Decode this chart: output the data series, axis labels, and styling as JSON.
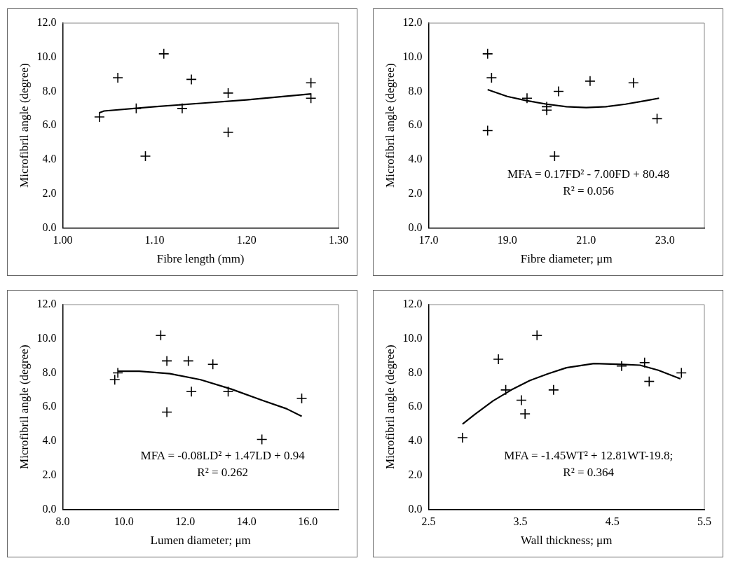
{
  "chart_data": [
    {
      "type": "scatter",
      "xlabel": "Fibre length (mm)",
      "ylabel": "Microfibril angle (degree)",
      "xlim": [
        1.0,
        1.3
      ],
      "xticks": [
        {
          "value": 1.0,
          "label": "1.00"
        },
        {
          "value": 1.1,
          "label": "1.10"
        },
        {
          "value": 1.2,
          "label": "1.20"
        },
        {
          "value": 1.3,
          "label": "1.30"
        }
      ],
      "ylim": [
        0,
        12
      ],
      "yticks": [
        {
          "value": 0,
          "label": "0.0"
        },
        {
          "value": 2,
          "label": "2.0"
        },
        {
          "value": 4,
          "label": "4.0"
        },
        {
          "value": 6,
          "label": "6.0"
        },
        {
          "value": 8,
          "label": "8.0"
        },
        {
          "value": 10,
          "label": "10.0"
        },
        {
          "value": 12,
          "label": "12.0"
        }
      ],
      "grid": false,
      "legend": false,
      "marker": "cross",
      "series": [
        {
          "type": "scatter",
          "color": "#000000",
          "x": [
            1.04,
            1.06,
            1.08,
            1.09,
            1.11,
            1.13,
            1.14,
            1.18,
            1.18,
            1.27,
            1.27
          ],
          "values": [
            6.5,
            8.8,
            7.0,
            4.2,
            10.2,
            7.0,
            8.7,
            5.6,
            7.9,
            8.5,
            7.6
          ]
        },
        {
          "type": "line",
          "color": "#000000",
          "marker": "none",
          "x": [
            1.04,
            1.045,
            1.1,
            1.15,
            1.2,
            1.27
          ],
          "values": [
            6.75,
            6.85,
            7.1,
            7.3,
            7.5,
            7.85
          ]
        }
      ]
    },
    {
      "type": "scatter",
      "xlabel": "Fibre diameter; μm",
      "ylabel": "Microfibril angle (degree)",
      "annotations": [
        "MFA = 0.17FD² - 7.00FD + 80.48",
        "R² = 0.056"
      ],
      "xlim": [
        17,
        24
      ],
      "xticks": [
        {
          "value": 17,
          "label": "17.0"
        },
        {
          "value": 19,
          "label": "19.0"
        },
        {
          "value": 21,
          "label": "21.0"
        },
        {
          "value": 23,
          "label": "23.0"
        }
      ],
      "ylim": [
        0,
        12
      ],
      "yticks": [
        {
          "value": 0,
          "label": "0.0"
        },
        {
          "value": 2,
          "label": "2.0"
        },
        {
          "value": 4,
          "label": "4.0"
        },
        {
          "value": 6,
          "label": "6.0"
        },
        {
          "value": 8,
          "label": "8.0"
        },
        {
          "value": 10,
          "label": "10.0"
        },
        {
          "value": 12,
          "label": "12.0"
        }
      ],
      "grid": false,
      "legend": false,
      "marker": "cross",
      "series": [
        {
          "type": "scatter",
          "color": "#000000",
          "x": [
            18.5,
            18.6,
            18.5,
            19.5,
            20.0,
            20.0,
            20.2,
            20.3,
            21.1,
            22.2,
            22.8
          ],
          "values": [
            10.2,
            8.8,
            5.7,
            7.6,
            7.1,
            6.9,
            4.2,
            8.0,
            8.6,
            8.5,
            6.4
          ]
        },
        {
          "type": "line",
          "color": "#000000",
          "marker": "none",
          "x": [
            18.5,
            19.0,
            19.5,
            20.0,
            20.5,
            21.0,
            21.5,
            22.0,
            22.5,
            22.85
          ],
          "values": [
            8.1,
            7.7,
            7.45,
            7.25,
            7.1,
            7.05,
            7.1,
            7.25,
            7.45,
            7.6
          ]
        }
      ]
    },
    {
      "type": "scatter",
      "xlabel": "Lumen diameter; μm",
      "ylabel": "Microfibril angle (degree)",
      "annotations": [
        "MFA = -0.08LD² + 1.47LD + 0.94",
        "R² = 0.262"
      ],
      "xlim": [
        8,
        17
      ],
      "xticks": [
        {
          "value": 8,
          "label": "8.0"
        },
        {
          "value": 10,
          "label": "10.0"
        },
        {
          "value": 12,
          "label": "12.0"
        },
        {
          "value": 14,
          "label": "14.0"
        },
        {
          "value": 16,
          "label": "16.0"
        }
      ],
      "ylim": [
        0,
        12
      ],
      "yticks": [
        {
          "value": 0,
          "label": "0.0"
        },
        {
          "value": 2,
          "label": "2.0"
        },
        {
          "value": 4,
          "label": "4.0"
        },
        {
          "value": 6,
          "label": "6.0"
        },
        {
          "value": 8,
          "label": "8.0"
        },
        {
          "value": 10,
          "label": "10.0"
        },
        {
          "value": 12,
          "label": "12.0"
        }
      ],
      "grid": false,
      "legend": false,
      "marker": "cross",
      "series": [
        {
          "type": "scatter",
          "color": "#000000",
          "x": [
            9.7,
            9.8,
            11.2,
            11.4,
            11.4,
            12.1,
            12.2,
            12.9,
            13.4,
            14.5,
            15.8
          ],
          "values": [
            7.6,
            8.0,
            10.2,
            8.7,
            5.7,
            8.7,
            6.9,
            8.5,
            6.9,
            4.1,
            6.5
          ]
        },
        {
          "type": "line",
          "color": "#000000",
          "marker": "none",
          "x": [
            9.8,
            10.5,
            11.5,
            12.5,
            13.5,
            14.5,
            15.3,
            15.8
          ],
          "values": [
            8.1,
            8.1,
            7.95,
            7.6,
            7.05,
            6.4,
            5.9,
            5.45
          ]
        }
      ]
    },
    {
      "type": "scatter",
      "xlabel": "Wall thickness; μm",
      "ylabel": "Microfibril angle (degree)",
      "annotations": [
        "MFA = -1.45WT² + 12.81WT-19.8;",
        "R² = 0.364"
      ],
      "xlim": [
        2.5,
        5.5
      ],
      "xticks": [
        2.5,
        3.5,
        4.5,
        5.5
      ],
      "ylim": [
        0,
        12
      ],
      "yticks": [
        {
          "value": 0,
          "label": "0.0"
        },
        {
          "value": 2,
          "label": "2.0"
        },
        {
          "value": 4,
          "label": "4.0"
        },
        {
          "value": 6,
          "label": "6.0"
        },
        {
          "value": 8,
          "label": "8.0"
        },
        {
          "value": 10,
          "label": "10.0"
        },
        {
          "value": 12,
          "label": "12.0"
        }
      ],
      "grid": false,
      "legend": false,
      "marker": "cross",
      "series": [
        {
          "type": "scatter",
          "color": "#000000",
          "x": [
            2.87,
            3.26,
            3.34,
            3.51,
            3.55,
            3.68,
            3.86,
            4.6,
            4.85,
            4.9,
            5.25
          ],
          "values": [
            4.2,
            8.8,
            7.0,
            6.4,
            5.6,
            10.2,
            7.0,
            8.4,
            8.6,
            7.5,
            8.0
          ]
        },
        {
          "type": "line",
          "color": "#000000",
          "marker": "none",
          "x": [
            2.87,
            3.0,
            3.2,
            3.4,
            3.6,
            3.8,
            4.0,
            4.3,
            4.6,
            4.8,
            5.0,
            5.24
          ],
          "values": [
            5.0,
            5.55,
            6.35,
            7.0,
            7.55,
            7.95,
            8.3,
            8.55,
            8.5,
            8.45,
            8.15,
            7.65
          ]
        }
      ]
    }
  ]
}
